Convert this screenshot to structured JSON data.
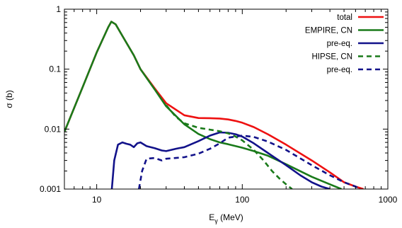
{
  "chart_data": {
    "type": "line",
    "title": "",
    "xlabel": "E",
    "xlabel_sub": "γ",
    "xlabel_unit": " (MeV)",
    "ylabel": "σ (b)",
    "xscale": "log",
    "yscale": "log",
    "xlim": [
      6,
      1000
    ],
    "ylim": [
      0.001,
      1
    ],
    "xticks": [
      {
        "v": 10,
        "label": "10"
      },
      {
        "v": 100,
        "label": "100"
      },
      {
        "v": 1000,
        "label": "1000"
      }
    ],
    "yticks": [
      {
        "v": 1,
        "label": "1"
      },
      {
        "v": 0.1,
        "label": "0.1"
      },
      {
        "v": 0.01,
        "label": "0.01"
      },
      {
        "v": 0.001,
        "label": "0.001"
      }
    ],
    "legend_position": "top-right",
    "series": [
      {
        "name": "total",
        "color": "#ee1111",
        "dash": false,
        "x": [
          6,
          8,
          10,
          12,
          12.6,
          13.5,
          15,
          18,
          20,
          25,
          30,
          40,
          50,
          60,
          70,
          80,
          90,
          100,
          120,
          150,
          200,
          300,
          400,
          500,
          600,
          680
        ],
        "y": [
          0.009,
          0.05,
          0.19,
          0.5,
          0.62,
          0.56,
          0.36,
          0.17,
          0.1,
          0.048,
          0.027,
          0.017,
          0.0153,
          0.0152,
          0.015,
          0.0145,
          0.0137,
          0.0128,
          0.0108,
          0.0082,
          0.0055,
          0.003,
          0.0019,
          0.0013,
          0.0011,
          0.001
        ]
      },
      {
        "name": "EMPIRE, CN",
        "color": "#1a7a1a",
        "dash": false,
        "x": [
          6,
          8,
          10,
          12,
          12.6,
          13.5,
          15,
          18,
          20,
          25,
          30,
          40,
          50,
          60,
          70,
          80,
          100,
          120,
          150,
          200,
          300,
          400,
          480
        ],
        "y": [
          0.009,
          0.05,
          0.19,
          0.5,
          0.62,
          0.56,
          0.36,
          0.17,
          0.1,
          0.046,
          0.024,
          0.012,
          0.0083,
          0.0068,
          0.006,
          0.0056,
          0.0049,
          0.0043,
          0.0036,
          0.0026,
          0.0016,
          0.0012,
          0.001
        ]
      },
      {
        "name": "pre-eq.",
        "color": "#12128a",
        "dash": false,
        "x": [
          12.7,
          13.2,
          14,
          15,
          16,
          17,
          18,
          19,
          20,
          22,
          25,
          28,
          30,
          35,
          40,
          50,
          60,
          70,
          80,
          90,
          100,
          120,
          150,
          200,
          250,
          300,
          350,
          400
        ],
        "y": [
          0.001,
          0.003,
          0.0055,
          0.006,
          0.0057,
          0.0055,
          0.005,
          0.0058,
          0.006,
          0.0052,
          0.0048,
          0.0044,
          0.0043,
          0.0047,
          0.005,
          0.0063,
          0.0078,
          0.0088,
          0.0087,
          0.0082,
          0.0075,
          0.0058,
          0.004,
          0.0025,
          0.0017,
          0.0013,
          0.0011,
          0.001
        ]
      },
      {
        "name": "HIPSE, CN",
        "color": "#1a7a1a",
        "dash": true,
        "x": [
          30,
          35,
          40,
          50,
          60,
          70,
          80,
          90,
          100,
          120,
          140,
          160,
          180,
          200,
          220
        ],
        "y": [
          0.025,
          0.016,
          0.0125,
          0.0105,
          0.0098,
          0.0092,
          0.0085,
          0.0075,
          0.0065,
          0.0045,
          0.003,
          0.002,
          0.0015,
          0.0012,
          0.001
        ]
      },
      {
        "name": "pre-eq.",
        "color": "#12128a",
        "dash": true,
        "x": [
          19.5,
          20.5,
          22,
          25,
          28,
          30,
          35,
          40,
          50,
          60,
          70,
          80,
          100,
          120,
          150,
          200,
          300,
          400,
          500,
          600,
          650
        ],
        "y": [
          0.001,
          0.002,
          0.0032,
          0.0033,
          0.003,
          0.0032,
          0.0033,
          0.0034,
          0.0039,
          0.0047,
          0.0058,
          0.0072,
          0.0078,
          0.0074,
          0.0062,
          0.0045,
          0.0025,
          0.0017,
          0.0013,
          0.0011,
          0.001
        ]
      }
    ]
  }
}
